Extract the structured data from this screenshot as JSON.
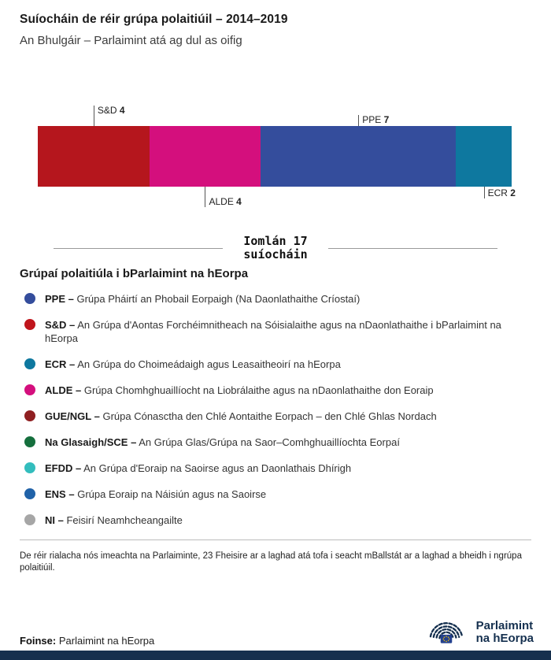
{
  "header": {
    "title": "Suíocháin de réir grúpa polaitiúil – 2014–2019",
    "subtitle": "An Bhulgáir – Parlaimint atá ag dul as oifig"
  },
  "chart_data": {
    "type": "bar",
    "variant": "horizontal-stacked-seats",
    "title": "Suíocháin de réir grúpa polaitiúil – 2014–2019",
    "total": 17,
    "total_label_line1": "Iomlán 17",
    "total_label_line2": "suíocháin",
    "segments": [
      {
        "group": "S&D",
        "value": 4,
        "color": "#b5161d",
        "label_position": "above"
      },
      {
        "group": "ALDE",
        "value": 4,
        "color": "#d40f7d",
        "label_position": "below"
      },
      {
        "group": "PPE",
        "value": 7,
        "color": "#344d9c",
        "label_position": "above"
      },
      {
        "group": "ECR",
        "value": 2,
        "color": "#0e789f",
        "label_position": "below"
      }
    ]
  },
  "legend": {
    "heading": "Grúpaí polaitiúla i bParlaimint na hEorpa",
    "items": [
      {
        "abbr": "PPE –",
        "desc": "Grúpa Pháirtí an Phobail Eorpaigh (Na Daonlathaithe Críostaí)",
        "color": "#344d9c"
      },
      {
        "abbr": "S&D –",
        "desc": "An Grúpa d'Aontas Forchéimnitheach na Sóisialaithe agus na nDaonlathaithe i bParlaimint na hEorpa",
        "color": "#c0151c"
      },
      {
        "abbr": "ECR –",
        "desc": "An Grúpa do Choimeádaigh agus Leasaitheoirí na hEorpa",
        "color": "#0e789f"
      },
      {
        "abbr": "ALDE –",
        "desc": "Grúpa Chomhghuaillíocht na Liobrálaithe agus na nDaonlathaithe don Eoraip",
        "color": "#d40f7d"
      },
      {
        "abbr": "GUE/NGL –",
        "desc": "Grúpa Cónasctha den Chlé Aontaithe Eorpach – den Chlé Ghlas Nordach",
        "color": "#8f1f21"
      },
      {
        "abbr": "Na Glasaigh/SCE –",
        "desc": "An Grúpa Glas/Grúpa na Saor–Comhghuaillíochta Eorpaí",
        "color": "#156f3d"
      },
      {
        "abbr": "EFDD –",
        "desc": "An Grúpa d'Eoraip na Saoirse agus an Daonlathais Dhírigh",
        "color": "#33bdbd"
      },
      {
        "abbr": "ENS –",
        "desc": "Grúpa Eoraip na Náisiún agus na Saoirse",
        "color": "#2062a8"
      },
      {
        "abbr": "NI –",
        "desc": "Feisirí Neamhcheangailte",
        "color": "#a6a6a6"
      }
    ]
  },
  "footnote": "De réir rialacha nós imeachta na Parlaiminte, 23 Fheisire ar a laghad atá tofa i seacht mBallstát ar a laghad a bheidh i ngrúpa polaitiúil.",
  "source": {
    "label": "Foinse:",
    "value": "Parlaimint na hEorpa"
  },
  "logo": {
    "line1": "Parlaimint",
    "line2": "na hEorpa"
  },
  "colors": {
    "navy": "#16304e"
  }
}
